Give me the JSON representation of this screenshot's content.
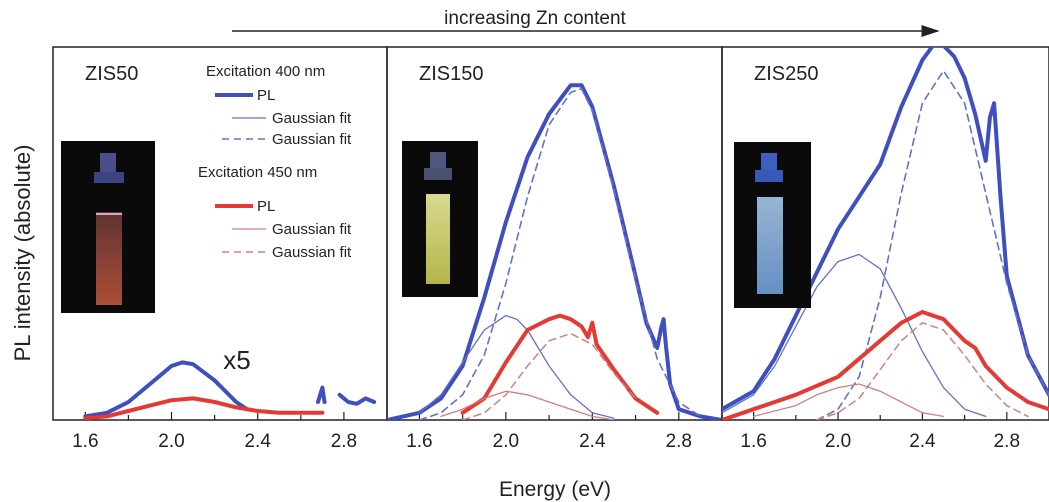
{
  "figure": {
    "arrow_label": "increasing Zn content",
    "ylabel": "PL intensity (absolute)",
    "xlabel": "Energy (eV)"
  },
  "legend": {
    "exc400": "Excitation 400 nm",
    "exc450": "Excitation 450 nm",
    "pl": "PL",
    "fit": "Gaussian fit"
  },
  "colors": {
    "blue": "#3f4fbf",
    "red": "#e53a34",
    "blue_thin": "#6670c8",
    "red_thin": "#d08080"
  },
  "chart_data": [
    {
      "type": "line",
      "title": "ZIS50",
      "annotation": "x5",
      "xlim": [
        1.45,
        3.0
      ],
      "ylim": [
        0,
        1.0
      ],
      "x_ticks": [
        "1.6",
        "2.0",
        "2.4",
        "2.8"
      ],
      "series": [
        {
          "name": "PL (Excitation 400 nm)",
          "color": "blue",
          "width": 4,
          "dash": "",
          "x": [
            1.6,
            1.7,
            1.8,
            1.9,
            2.0,
            2.05,
            2.1,
            2.2,
            2.3,
            2.35
          ],
          "y": [
            0.01,
            0.02,
            0.05,
            0.1,
            0.15,
            0.16,
            0.155,
            0.11,
            0.05,
            0.03
          ]
        },
        {
          "name": "PL (Excitation 450 nm)",
          "color": "red",
          "width": 4,
          "dash": "",
          "x": [
            1.6,
            1.7,
            1.8,
            1.9,
            2.0,
            2.1,
            2.2,
            2.3,
            2.4,
            2.5,
            2.6,
            2.7
          ],
          "y": [
            0.005,
            0.01,
            0.025,
            0.04,
            0.055,
            0.06,
            0.05,
            0.035,
            0.025,
            0.02,
            0.02,
            0.02
          ]
        },
        {
          "name": "PL (Excitation 400 nm) tail",
          "color": "blue",
          "width": 4,
          "dash": "",
          "x": [
            2.68,
            2.7,
            2.71
          ],
          "y": [
            0.05,
            0.09,
            0.05
          ]
        },
        {
          "name": "PL (Excitation 400 nm) tail",
          "color": "blue",
          "width": 4,
          "dash": "",
          "x": [
            2.78,
            2.82,
            2.86,
            2.9,
            2.94
          ],
          "y": [
            0.07,
            0.05,
            0.045,
            0.06,
            0.05
          ]
        }
      ]
    },
    {
      "type": "line",
      "title": "ZIS150",
      "xlim": [
        1.45,
        3.0
      ],
      "ylim": [
        0,
        1.0
      ],
      "x_ticks": [
        "1.6",
        "2.0",
        "2.4",
        "2.8"
      ],
      "series": [
        {
          "name": "PL (Excitation 400 nm)",
          "color": "blue",
          "width": 4,
          "dash": "",
          "x": [
            1.45,
            1.6,
            1.7,
            1.8,
            1.9,
            2.0,
            2.1,
            2.2,
            2.3,
            2.35,
            2.4,
            2.5,
            2.6,
            2.65,
            2.7,
            2.72,
            2.73,
            2.74,
            2.76,
            2.8,
            2.9,
            3.0
          ],
          "y": [
            0.0,
            0.02,
            0.06,
            0.15,
            0.34,
            0.55,
            0.73,
            0.85,
            0.93,
            0.93,
            0.87,
            0.65,
            0.4,
            0.27,
            0.2,
            0.26,
            0.28,
            0.21,
            0.1,
            0.03,
            0.01,
            0.0
          ]
        },
        {
          "name": "Gaussian fit (Excitation 400 nm)",
          "color": "blue_thin",
          "width": 1.3,
          "dash": "",
          "x": [
            1.6,
            1.7,
            1.8,
            1.9,
            2.0,
            2.05,
            2.1,
            2.2,
            2.3,
            2.4,
            2.5
          ],
          "y": [
            0.02,
            0.07,
            0.16,
            0.25,
            0.29,
            0.28,
            0.25,
            0.15,
            0.07,
            0.02,
            0.005
          ]
        },
        {
          "name": "Gaussian fit (Excitation 400 nm)",
          "color": "blue_thin",
          "width": 1.6,
          "dash": "7 5",
          "x": [
            1.6,
            1.7,
            1.8,
            1.9,
            2.0,
            2.1,
            2.2,
            2.3,
            2.35,
            2.4,
            2.5,
            2.6,
            2.7,
            2.8,
            2.9
          ],
          "y": [
            0.0,
            0.02,
            0.07,
            0.18,
            0.38,
            0.62,
            0.82,
            0.91,
            0.92,
            0.86,
            0.64,
            0.39,
            0.17,
            0.05,
            0.01
          ]
        },
        {
          "name": "PL (Excitation 450 nm)",
          "color": "red",
          "width": 4,
          "dash": "",
          "x": [
            1.8,
            1.9,
            2.0,
            2.1,
            2.2,
            2.25,
            2.3,
            2.35,
            2.38,
            2.4,
            2.42,
            2.5,
            2.6,
            2.7
          ],
          "y": [
            0.02,
            0.06,
            0.16,
            0.25,
            0.28,
            0.29,
            0.28,
            0.26,
            0.23,
            0.27,
            0.21,
            0.14,
            0.06,
            0.02
          ]
        },
        {
          "name": "Gaussian fit (Excitation 450 nm)",
          "color": "red_thin",
          "width": 1.3,
          "dash": "",
          "x": [
            1.7,
            1.8,
            1.9,
            2.0,
            2.1,
            2.2,
            2.3,
            2.4,
            2.5
          ],
          "y": [
            0.01,
            0.03,
            0.06,
            0.08,
            0.07,
            0.05,
            0.03,
            0.01,
            0.0
          ]
        },
        {
          "name": "Gaussian fit (Excitation 450 nm)",
          "color": "red_thin",
          "width": 1.5,
          "dash": "7 5",
          "x": [
            1.8,
            1.9,
            2.0,
            2.1,
            2.2,
            2.3,
            2.4,
            2.5,
            2.6
          ],
          "y": [
            0.0,
            0.02,
            0.07,
            0.15,
            0.22,
            0.24,
            0.21,
            0.13,
            0.06
          ]
        }
      ]
    },
    {
      "type": "line",
      "title": "ZIS250",
      "xlim": [
        1.45,
        3.0
      ],
      "ylim": [
        0,
        1.0
      ],
      "x_ticks": [
        "1.6",
        "2.0",
        "2.4",
        "2.8"
      ],
      "series": [
        {
          "name": "PL (Excitation 400 nm)",
          "color": "blue",
          "width": 4,
          "dash": "",
          "x": [
            1.45,
            1.6,
            1.7,
            1.8,
            1.9,
            2.0,
            2.1,
            2.2,
            2.3,
            2.4,
            2.45,
            2.5,
            2.55,
            2.6,
            2.65,
            2.7,
            2.72,
            2.74,
            2.77,
            2.8,
            2.9,
            3.0
          ],
          "y": [
            0.03,
            0.08,
            0.17,
            0.29,
            0.41,
            0.53,
            0.62,
            0.71,
            0.87,
            1.0,
            1.04,
            1.04,
            1.01,
            0.95,
            0.85,
            0.72,
            0.84,
            0.88,
            0.62,
            0.4,
            0.18,
            0.07
          ]
        },
        {
          "name": "Gaussian fit (Excitation 400 nm)",
          "color": "blue_thin",
          "width": 1.3,
          "dash": "",
          "x": [
            1.45,
            1.6,
            1.7,
            1.8,
            1.9,
            2.0,
            2.1,
            2.2,
            2.3,
            2.4,
            2.5,
            2.6,
            2.7
          ],
          "y": [
            0.02,
            0.07,
            0.15,
            0.26,
            0.37,
            0.44,
            0.46,
            0.42,
            0.31,
            0.19,
            0.09,
            0.03,
            0.01
          ]
        },
        {
          "name": "Gaussian fit (Excitation 400 nm)",
          "color": "blue_thin",
          "width": 1.6,
          "dash": "7 5",
          "x": [
            1.9,
            2.0,
            2.1,
            2.2,
            2.3,
            2.4,
            2.5,
            2.6,
            2.7,
            2.8,
            2.9,
            3.0
          ],
          "y": [
            0.0,
            0.03,
            0.12,
            0.34,
            0.63,
            0.88,
            0.97,
            0.88,
            0.63,
            0.38,
            0.18,
            0.07
          ]
        },
        {
          "name": "PL (Excitation 450 nm)",
          "color": "red",
          "width": 4,
          "dash": "",
          "x": [
            1.45,
            1.6,
            1.8,
            2.0,
            2.2,
            2.3,
            2.4,
            2.5,
            2.6,
            2.65,
            2.68,
            2.7,
            2.8,
            2.9,
            3.0
          ],
          "y": [
            0.0,
            0.03,
            0.07,
            0.12,
            0.22,
            0.27,
            0.3,
            0.28,
            0.22,
            0.2,
            0.17,
            0.15,
            0.09,
            0.05,
            0.03
          ]
        },
        {
          "name": "Gaussian fit (Excitation 450 nm)",
          "color": "red_thin",
          "width": 1.3,
          "dash": "",
          "x": [
            1.6,
            1.8,
            1.9,
            2.0,
            2.1,
            2.2,
            2.3,
            2.4,
            2.5
          ],
          "y": [
            0.01,
            0.04,
            0.07,
            0.09,
            0.1,
            0.08,
            0.05,
            0.02,
            0.01
          ]
        },
        {
          "name": "Gaussian fit (Excitation 450 nm)",
          "color": "red_thin",
          "width": 1.5,
          "dash": "7 5",
          "x": [
            1.9,
            2.0,
            2.1,
            2.2,
            2.3,
            2.4,
            2.5,
            2.6,
            2.7,
            2.8,
            2.9
          ],
          "y": [
            0.0,
            0.02,
            0.06,
            0.14,
            0.22,
            0.27,
            0.25,
            0.18,
            0.1,
            0.04,
            0.01
          ]
        }
      ]
    }
  ]
}
